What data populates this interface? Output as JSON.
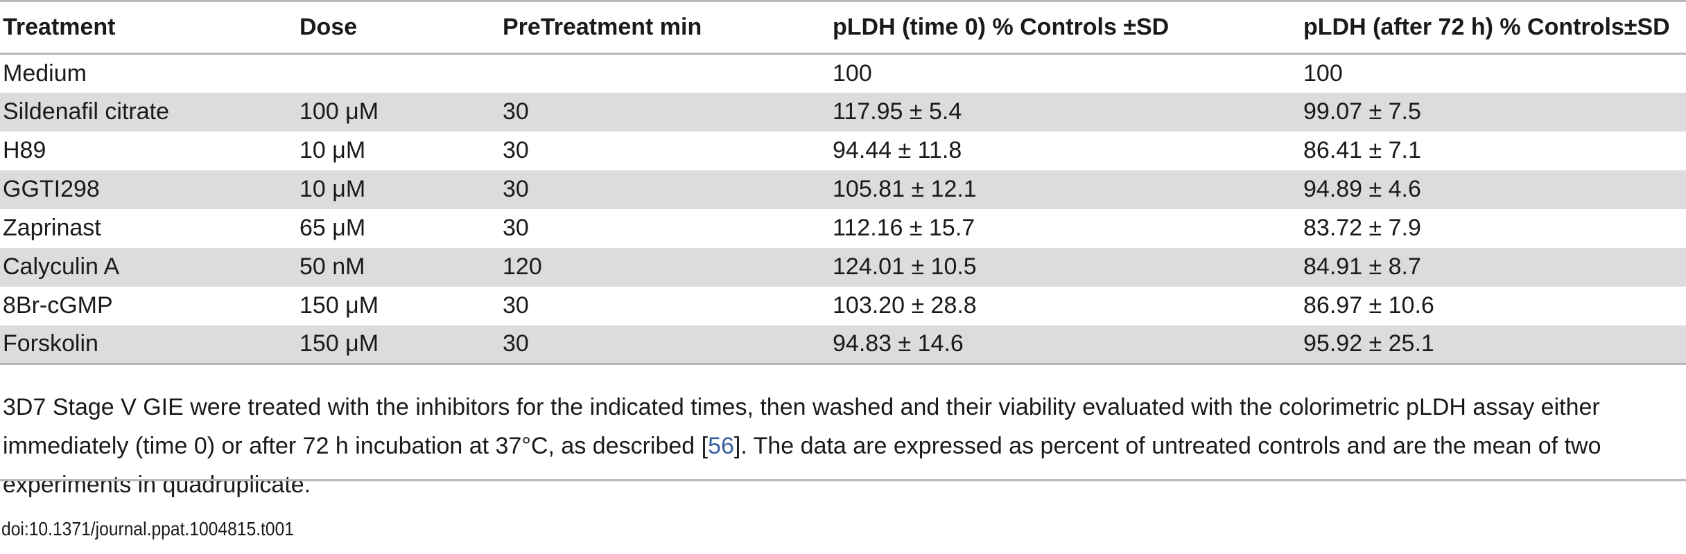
{
  "table": {
    "headers": [
      "Treatment",
      "Dose",
      "PreTreatment min",
      "pLDH (time 0) % Controls ±SD",
      "pLDH (after 72 h) % Controls±SD"
    ],
    "rows": [
      [
        "Medium",
        "",
        "",
        "100",
        "100"
      ],
      [
        "Sildenafil citrate",
        "100 μM",
        "30",
        "117.95 ± 5.4",
        "99.07 ± 7.5"
      ],
      [
        "H89",
        "10 μM",
        "30",
        "94.44 ± 11.8",
        "86.41 ± 7.1"
      ],
      [
        "GGTI298",
        "10 μM",
        "30",
        "105.81 ± 12.1",
        "94.89 ± 4.6"
      ],
      [
        "Zaprinast",
        "65 μM",
        "30",
        "112.16 ± 15.7",
        "83.72 ± 7.9"
      ],
      [
        "Calyculin A",
        "50 nM",
        "120",
        "124.01 ± 10.5",
        "84.91 ± 8.7"
      ],
      [
        "8Br-cGMP",
        "150 μM",
        "30",
        "103.20 ± 28.8",
        "86.97 ± 10.6"
      ],
      [
        "Forskolin",
        "150 μM",
        "30",
        "94.83 ± 14.6",
        "95.92 ± 25.1"
      ]
    ]
  },
  "caption": {
    "text_before": "3D7 Stage V GIE were treated with the inhibitors for the indicated times, then washed and their viability evaluated with the colorimetric pLDH assay either immediately (time 0) or after 72 h incubation at 37°C, as described [",
    "ref": "56",
    "text_after": "]. The data are expressed as percent of untreated controls and are the mean of two experiments in quadruplicate."
  },
  "doi": "doi:10.1371/journal.ppat.1004815.t001",
  "colors": {
    "shade": "#dcdcdc",
    "rule": "#b8b8b8",
    "link": "#3a5fa0"
  }
}
